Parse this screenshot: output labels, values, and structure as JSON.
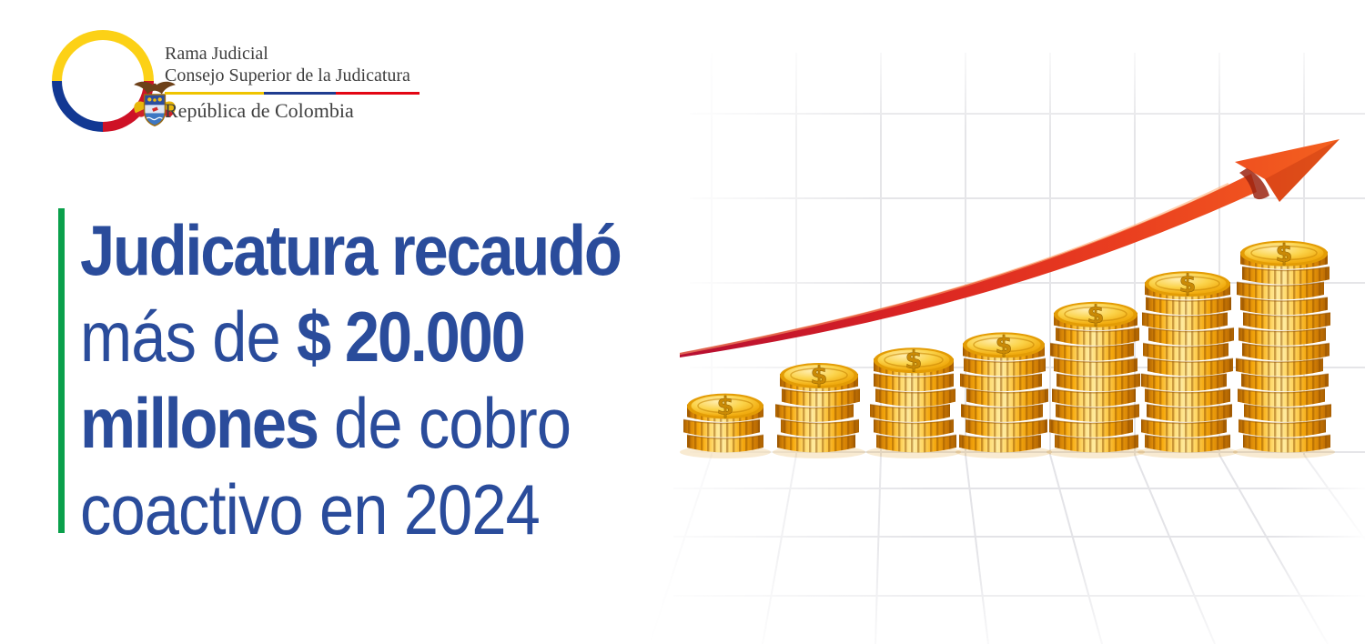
{
  "banner": {
    "background": "#ffffff"
  },
  "logo": {
    "line1": "Rama Judicial",
    "line2": "Consejo Superior de la Judicatura",
    "line3": "República de Colombia",
    "divider_colors": {
      "yellow": "#EFC400",
      "blue": "#1F3C8F",
      "red": "#E30613"
    },
    "ring_colors": {
      "yellow": "#FCD116",
      "blue": "#123893",
      "red": "#CE1126"
    }
  },
  "headline": {
    "color": "#2A4C9B",
    "accent_bar_color": "#0AA04B",
    "lines": [
      {
        "segments": [
          {
            "text": "Judicatura recaudó",
            "bold": true
          }
        ]
      },
      {
        "segments": [
          {
            "text": "más de ",
            "bold": false
          },
          {
            "text": "$ 20.000",
            "bold": true
          }
        ]
      },
      {
        "segments": [
          {
            "text": "millones",
            "bold": true
          },
          {
            "text": " de cobro",
            "bold": false
          }
        ]
      },
      {
        "segments": [
          {
            "text": "coactivo en 2024",
            "bold": false
          }
        ]
      }
    ]
  },
  "illustration": {
    "type": "coin-stack-growth",
    "coin_symbol": "$",
    "coins_per_stack": [
      3,
      5,
      6,
      7,
      9,
      11,
      13
    ],
    "colors": {
      "grid": "#E5E5E8",
      "floor_grid": "#E3E3E7",
      "gold": "#F7A90C",
      "gold_light": "#FFEB9E",
      "gold_dark": "#A95F02",
      "arrow_start": "#B50D32",
      "arrow_mid": "#D92323",
      "arrow_end": "#F4611F"
    }
  }
}
